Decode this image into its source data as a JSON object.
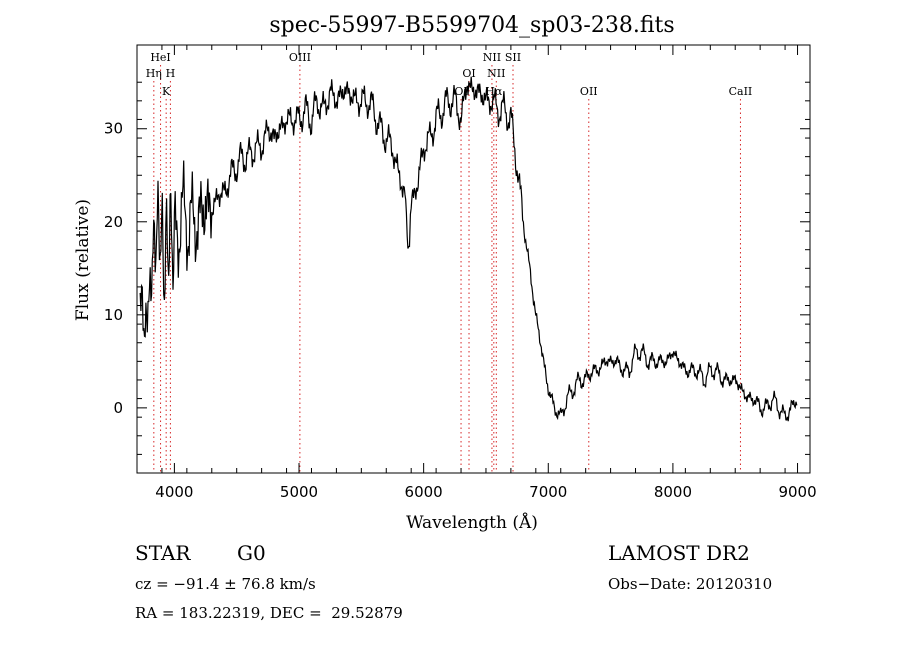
{
  "chart_data": {
    "type": "line",
    "title": "spec-55997-B5599704_sp03-238.fits",
    "xlabel": "Wavelength (Å)",
    "ylabel": "Flux (relative)",
    "xlim": [
      3700,
      9100
    ],
    "ylim": [
      -7,
      39
    ],
    "xticks": [
      4000,
      5000,
      6000,
      7000,
      8000,
      9000
    ],
    "yticks": [
      0,
      10,
      20,
      30
    ],
    "grid": false,
    "legend": "none",
    "line_color": "#000000",
    "marker_color": "#d62728",
    "spectral_lines": [
      {
        "name": "HeI",
        "wavelength": 3889,
        "row": 0
      },
      {
        "name": "Hη",
        "wavelength": 3835,
        "row": 1
      },
      {
        "name": "H",
        "wavelength": 3968,
        "row": 1
      },
      {
        "name": "K",
        "wavelength": 3934,
        "row": 2
      },
      {
        "name": "OIII",
        "wavelength": 5007,
        "row": 0
      },
      {
        "name": "OI",
        "wavelength": 6300,
        "row": 2
      },
      {
        "name": "OI",
        "wavelength": 6364,
        "row": 1
      },
      {
        "name": "NII",
        "wavelength": 6548,
        "row": 0
      },
      {
        "name": "NII",
        "wavelength": 6583,
        "row": 1
      },
      {
        "name": "Hα",
        "wavelength": 6563,
        "row": 2
      },
      {
        "name": "SII",
        "wavelength": 6717,
        "row": 0
      },
      {
        "name": "OII",
        "wavelength": 7325,
        "row": 2
      },
      {
        "name": "CaII",
        "wavelength": 8542,
        "row": 2
      }
    ],
    "series": [
      {
        "x": [
          3720,
          3760,
          3800,
          3840,
          3880,
          3920,
          3960,
          4000,
          4050,
          4100,
          4150,
          4200,
          4250,
          4300,
          4350,
          4400,
          4450,
          4500,
          4550,
          4600,
          4650,
          4700,
          4750,
          4800,
          4850,
          4900,
          4950,
          5000,
          5050,
          5100,
          5150,
          5200,
          5250,
          5300,
          5350,
          5400,
          5450,
          5500,
          5550,
          5600,
          5650,
          5700,
          5750,
          5800,
          5850,
          5880,
          5900,
          5950,
          6000,
          6050,
          6100,
          6150,
          6200,
          6250,
          6300,
          6350,
          6400,
          6450,
          6500,
          6550,
          6600,
          6650,
          6700,
          6750,
          6800,
          6850,
          6900,
          6950,
          7000,
          7050,
          7100,
          7150,
          7200,
          7250,
          7300,
          7350,
          7400,
          7450,
          7500,
          7550,
          7600,
          7650,
          7700,
          7750,
          7800,
          7850,
          7900,
          7950,
          8000,
          8050,
          8100,
          8150,
          8200,
          8250,
          8300,
          8350,
          8400,
          8450,
          8500,
          8550,
          8600,
          8650,
          8700,
          8750,
          8800,
          8850,
          8900,
          8950,
          9000
        ],
        "y": [
          14,
          8,
          12,
          18,
          20,
          15,
          19,
          17,
          21,
          20,
          20,
          20,
          22,
          21,
          23,
          23,
          25,
          26,
          27,
          27,
          28,
          28,
          30,
          29,
          30,
          31,
          31,
          31,
          32,
          31,
          33,
          32,
          34,
          33,
          34,
          34,
          33,
          33,
          33,
          32,
          30,
          29,
          28,
          25,
          23,
          17,
          22,
          24,
          28,
          29,
          31,
          32,
          33,
          33,
          31,
          35,
          34,
          34,
          33,
          33,
          32,
          32,
          31,
          26,
          20,
          15,
          10,
          6,
          2,
          0,
          -1,
          1,
          2,
          3,
          3,
          4,
          4,
          5,
          5,
          5,
          4,
          4,
          6,
          6,
          5,
          5,
          5,
          5,
          6,
          5,
          4,
          4,
          4,
          3,
          4,
          4,
          3,
          3,
          3,
          2,
          1,
          1,
          0,
          0,
          1,
          0,
          -1,
          0,
          1
        ]
      }
    ]
  },
  "info": {
    "class_label": "STAR",
    "subclass_label": "G0",
    "survey": "LAMOST DR2",
    "cz": "cz = −91.4 ± 76.8 km/s",
    "obs_date": "Obs−Date: 20120310",
    "coords": "RA = 183.22319, DEC =  29.52879"
  }
}
